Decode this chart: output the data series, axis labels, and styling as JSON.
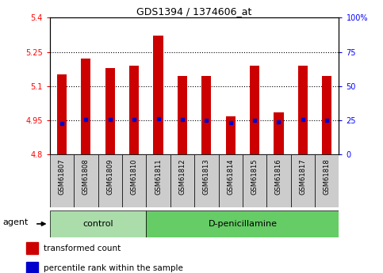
{
  "title": "GDS1394 / 1374606_at",
  "samples": [
    "GSM61807",
    "GSM61808",
    "GSM61809",
    "GSM61810",
    "GSM61811",
    "GSM61812",
    "GSM61813",
    "GSM61814",
    "GSM61815",
    "GSM61816",
    "GSM61817",
    "GSM61818"
  ],
  "red_top": [
    5.15,
    5.22,
    5.18,
    5.19,
    5.32,
    5.145,
    5.145,
    4.965,
    5.19,
    4.985,
    5.19,
    5.145
  ],
  "red_bottom": [
    4.8,
    4.8,
    4.8,
    4.8,
    4.8,
    4.8,
    4.8,
    4.8,
    4.8,
    4.8,
    4.8,
    4.8
  ],
  "blue_val": [
    4.936,
    4.952,
    4.952,
    4.952,
    4.956,
    4.952,
    4.948,
    4.938,
    4.948,
    4.943,
    4.952,
    4.948
  ],
  "groups": [
    {
      "label": "control",
      "start": 0,
      "end": 4
    },
    {
      "label": "D-penicillamine",
      "start": 4,
      "end": 12
    }
  ],
  "ylim_left": [
    4.8,
    5.4
  ],
  "ylim_right": [
    0,
    100
  ],
  "yticks_left": [
    4.8,
    4.95,
    5.1,
    5.25,
    5.4
  ],
  "yticks_right": [
    0,
    25,
    50,
    75,
    100
  ],
  "ytick_labels_left": [
    "4.8",
    "4.95",
    "5.1",
    "5.25",
    "5.4"
  ],
  "ytick_labels_right": [
    "0",
    "25",
    "50",
    "75",
    "100%"
  ],
  "hlines": [
    4.95,
    5.1,
    5.25
  ],
  "bar_color": "#cc0000",
  "blue_color": "#0000cc",
  "control_color": "#aaddaa",
  "dpenicillamine_color": "#66cc66",
  "bg_color": "#cccccc",
  "plot_bg": "#ffffff",
  "legend_items": [
    {
      "label": "transformed count",
      "color": "#cc0000"
    },
    {
      "label": "percentile rank within the sample",
      "color": "#0000cc"
    }
  ]
}
